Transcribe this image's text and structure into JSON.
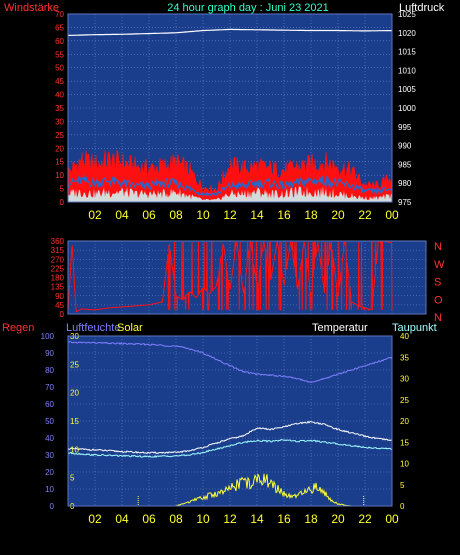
{
  "header": {
    "left_label": "Windstärke",
    "title": "24 hour graph day : Juni 23 2021",
    "right_label": "Luftdruck"
  },
  "colors": {
    "plot_bg": "#1a3d8c",
    "grid": "#6a86c8",
    "wind": "#ff1010",
    "gust": "#ccffff",
    "avg_wind": "#1e6ad2",
    "pressure": "#ffffff",
    "direction": "#ff1010",
    "humidity": "#8080ff",
    "temperature": "#ffffff",
    "dewpoint": "#a0ffff",
    "solar": "#ffff33",
    "left_axis": "#ff3030",
    "right_axis": "#ffffff",
    "x_axis": "#ffff33",
    "title": "#33ffcc"
  },
  "chart_data": [
    {
      "id": "wind_pressure",
      "type": "line",
      "x_ticks": [
        "02",
        "04",
        "06",
        "08",
        "10",
        "12",
        "14",
        "16",
        "18",
        "20",
        "22",
        "00"
      ],
      "left_axis": {
        "name": "Windstärke",
        "range": [
          0,
          70
        ],
        "ticks": [
          0,
          5,
          10,
          15,
          20,
          25,
          30,
          35,
          40,
          45,
          50,
          55,
          60,
          65,
          70
        ]
      },
      "right_axis": {
        "name": "Luftdruck",
        "range": [
          975,
          1025
        ],
        "ticks": [
          975,
          980,
          985,
          990,
          995,
          1000,
          1005,
          1010,
          1015,
          1020,
          1025
        ]
      },
      "series": [
        {
          "name": "Luftdruck",
          "axis": "right",
          "hours": [
            0,
            2,
            4,
            6,
            8,
            10,
            12,
            14,
            16,
            18,
            20,
            22,
            24
          ],
          "values": [
            1019.3,
            1019.5,
            1019.6,
            1019.8,
            1020.0,
            1020.6,
            1020.9,
            1020.8,
            1020.7,
            1020.6,
            1020.6,
            1020.5,
            1020.6
          ]
        },
        {
          "name": "wind_max",
          "axis": "left",
          "hours": [
            0,
            1,
            2,
            3,
            4,
            5,
            6,
            7,
            8,
            9,
            10,
            11,
            12,
            13,
            14,
            15,
            16,
            17,
            18,
            19,
            20,
            21,
            22,
            23,
            24
          ],
          "values": [
            14,
            20,
            18,
            20,
            19,
            17,
            16,
            17,
            19,
            15,
            7,
            6,
            18,
            16,
            17,
            16,
            15,
            17,
            18,
            19,
            17,
            15,
            8,
            8,
            12
          ]
        },
        {
          "name": "wind_avg",
          "axis": "left",
          "hours": [
            0,
            1,
            2,
            3,
            4,
            5,
            6,
            7,
            8,
            9,
            10,
            11,
            12,
            13,
            14,
            15,
            16,
            17,
            18,
            19,
            20,
            21,
            22,
            23,
            24
          ],
          "values": [
            7,
            8,
            7,
            8,
            7,
            6,
            6,
            7,
            7,
            5,
            3,
            3,
            6,
            6,
            7,
            7,
            6,
            7,
            8,
            8,
            7,
            6,
            4,
            4,
            5
          ]
        },
        {
          "name": "gust",
          "axis": "left",
          "hours": [
            0,
            1,
            2,
            3,
            4,
            5,
            6,
            7,
            8,
            9,
            10,
            11,
            12,
            13,
            14,
            15,
            16,
            17,
            18,
            19,
            20,
            21,
            22,
            23,
            24
          ],
          "values": [
            4,
            5,
            4,
            5,
            5,
            4,
            4,
            4,
            5,
            3,
            1,
            1,
            4,
            4,
            5,
            4,
            4,
            5,
            5,
            5,
            4,
            3,
            2,
            2,
            3
          ]
        }
      ]
    },
    {
      "id": "wind_direction",
      "type": "line",
      "x_ticks": [],
      "left_axis": {
        "range": [
          0,
          360
        ],
        "ticks": [
          0,
          45,
          90,
          135,
          180,
          225,
          270,
          315,
          360
        ]
      },
      "right_axis": {
        "labels": [
          "N",
          "W",
          "S",
          "O",
          "N"
        ]
      },
      "series": [
        {
          "name": "Windrichtung",
          "hours": [
            0,
            0.3,
            0.6,
            1,
            2,
            3,
            4,
            5,
            6,
            7,
            7.5,
            8,
            8.5,
            9,
            9.5,
            10,
            10.5,
            11,
            11.5,
            12,
            12.5,
            13,
            13.5,
            14,
            14.5,
            15,
            15.5,
            16,
            16.5,
            17,
            17.5,
            18,
            18.5,
            19,
            19.5,
            20,
            20.5,
            21,
            21.5,
            22,
            22.5,
            23,
            23.5,
            24
          ],
          "values": [
            15,
            350,
            10,
            25,
            20,
            30,
            35,
            40,
            45,
            60,
            350,
            90,
            70,
            110,
            80,
            130,
            100,
            140,
            350,
            120,
            360,
            100,
            360,
            130,
            360,
            160,
            360,
            140,
            360,
            120,
            360,
            90,
            360,
            100,
            360,
            80,
            360,
            60,
            40,
            30,
            20,
            360,
            360,
            350
          ]
        }
      ]
    },
    {
      "id": "rain_humidity_temp",
      "type": "line",
      "x_ticks": [
        "02",
        "04",
        "06",
        "08",
        "10",
        "12",
        "14",
        "16",
        "18",
        "20",
        "22",
        "00"
      ],
      "left_axis": {
        "name": "Regen",
        "range": [
          0,
          100
        ],
        "ticks": [
          0,
          10,
          20,
          30,
          40,
          50,
          60,
          70,
          80,
          90,
          100
        ]
      },
      "inner_axis": {
        "name": "Luftfeuchte",
        "range": [
          0,
          30
        ],
        "ticks": [
          0,
          5,
          10,
          15,
          20,
          25,
          30
        ]
      },
      "right_axis": {
        "name": "Taupunkt",
        "range": [
          0,
          40
        ],
        "ticks": [
          0,
          5,
          10,
          15,
          20,
          25,
          30,
          35,
          40
        ]
      },
      "labels": {
        "solar": "Solar",
        "temperature": "Temperatur"
      },
      "series": [
        {
          "name": "Luftfeuchte",
          "axis": "right",
          "hours": [
            0,
            2,
            4,
            6,
            8,
            9,
            10,
            11,
            12,
            13,
            14,
            15,
            16,
            17,
            18,
            19,
            20,
            21,
            22,
            23,
            24
          ],
          "values": [
            38.5,
            38.4,
            38.2,
            38.0,
            37.6,
            37.0,
            36.0,
            34.5,
            33.0,
            31.6,
            31.0,
            30.8,
            30.5,
            30.0,
            29.0,
            30.0,
            31.0,
            32.0,
            33.0,
            34.0,
            35.0
          ]
        },
        {
          "name": "Temperatur",
          "axis": "right",
          "hours": [
            0,
            2,
            4,
            6,
            8,
            9,
            10,
            11,
            12,
            13,
            14,
            15,
            16,
            17,
            18,
            19,
            20,
            21,
            22,
            23,
            24
          ],
          "values": [
            13.5,
            13.2,
            12.8,
            12.5,
            12.6,
            13.0,
            13.8,
            14.8,
            15.8,
            16.5,
            18.4,
            18.0,
            18.6,
            19.4,
            19.8,
            19.2,
            18.0,
            17.2,
            16.4,
            15.8,
            15.4
          ]
        },
        {
          "name": "Taupunkt",
          "axis": "right",
          "hours": [
            0,
            2,
            4,
            6,
            8,
            9,
            10,
            11,
            12,
            13,
            14,
            15,
            16,
            17,
            18,
            19,
            20,
            21,
            22,
            23,
            24
          ],
          "values": [
            12.5,
            12.0,
            11.8,
            11.6,
            11.8,
            12.0,
            12.6,
            13.4,
            14.2,
            15.0,
            15.4,
            15.2,
            15.6,
            15.2,
            15.4,
            15.0,
            14.6,
            14.2,
            13.8,
            13.6,
            13.4
          ]
        },
        {
          "name": "Solar",
          "axis": "right",
          "hours": [
            0,
            4,
            5,
            7,
            8,
            8.5,
            9,
            9.5,
            10,
            10.5,
            11,
            11.5,
            12,
            12.5,
            13,
            13.5,
            14,
            14.5,
            15,
            15.5,
            16,
            16.5,
            17,
            17.5,
            18,
            18.5,
            19,
            19.5,
            20,
            20.5,
            21,
            24
          ],
          "values": [
            0,
            0,
            0,
            0,
            0,
            0.5,
            1,
            1.5,
            2,
            2.5,
            3,
            3.2,
            4,
            5,
            6,
            5,
            6,
            7,
            5,
            4,
            3,
            2,
            2.5,
            3,
            4,
            4.5,
            3,
            1.5,
            0.5,
            0.2,
            0,
            0
          ]
        },
        {
          "name": "Regen",
          "axis": "left",
          "hours": [
            0,
            24
          ],
          "values": [
            0,
            0
          ]
        }
      ]
    }
  ]
}
